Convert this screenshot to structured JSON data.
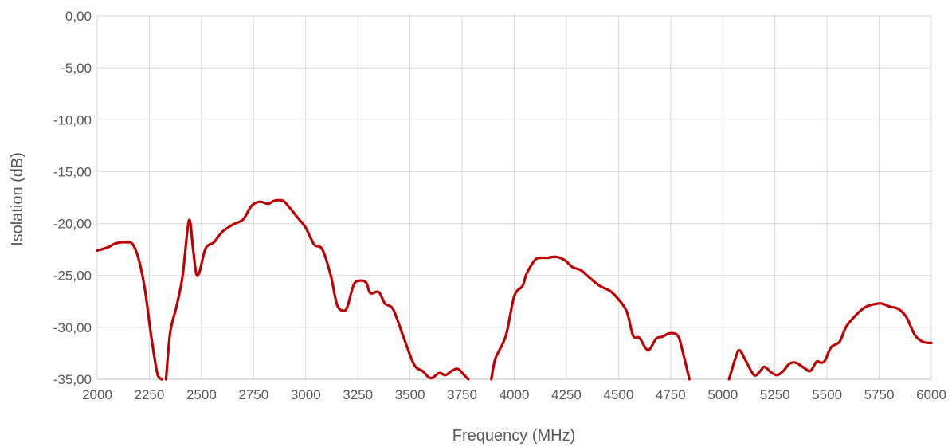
{
  "chart_data": {
    "type": "line",
    "xlabel": "Frequency (MHz)",
    "ylabel": "Isolation (dB)",
    "xlim": [
      2000,
      6000
    ],
    "ylim": [
      -35,
      0
    ],
    "x_ticks": [
      2000,
      2250,
      2500,
      2750,
      3000,
      3250,
      3500,
      3750,
      4000,
      4250,
      4500,
      4750,
      5000,
      5250,
      5500,
      5750,
      6000
    ],
    "x_tick_labels": [
      "2000",
      "2250",
      "2500",
      "2750",
      "3000",
      "3250",
      "3500",
      "3750",
      "4000",
      "4250",
      "4500",
      "4750",
      "5000",
      "5250",
      "5500",
      "5750",
      "6000"
    ],
    "y_ticks": [
      0,
      -5,
      -10,
      -15,
      -20,
      -25,
      -30,
      -35
    ],
    "y_tick_labels": [
      "0,00",
      "-5,00",
      "-10,00",
      "-15,00",
      "-20,00",
      "-25,00",
      "-30,00",
      "-35,00"
    ],
    "grid": true,
    "legend": "none",
    "series": [
      {
        "color": "#c00000",
        "segments": [
          [
            [
              2000,
              -22.6
            ],
            [
              2050,
              -22.3
            ],
            [
              2090,
              -21.9
            ],
            [
              2140,
              -21.8
            ],
            [
              2170,
              -22.0
            ],
            [
              2200,
              -23.5
            ],
            [
              2230,
              -26.5
            ],
            [
              2260,
              -31.0
            ],
            [
              2290,
              -34.6
            ],
            [
              2310,
              -35.0
            ]
          ],
          [
            [
              2330,
              -35.0
            ],
            [
              2350,
              -30.5
            ],
            [
              2380,
              -28.0
            ],
            [
              2410,
              -25.0
            ],
            [
              2440,
              -19.7
            ],
            [
              2460,
              -22.5
            ],
            [
              2475,
              -24.8
            ],
            [
              2490,
              -24.7
            ],
            [
              2520,
              -22.4
            ],
            [
              2560,
              -21.8
            ],
            [
              2600,
              -20.8
            ],
            [
              2650,
              -20.1
            ],
            [
              2700,
              -19.6
            ],
            [
              2740,
              -18.3
            ],
            [
              2780,
              -17.9
            ],
            [
              2820,
              -18.1
            ],
            [
              2850,
              -17.8
            ],
            [
              2890,
              -17.8
            ],
            [
              2920,
              -18.4
            ],
            [
              2960,
              -19.4
            ],
            [
              3000,
              -20.4
            ],
            [
              3040,
              -22.0
            ],
            [
              3080,
              -22.5
            ],
            [
              3120,
              -25.0
            ],
            [
              3150,
              -27.8
            ],
            [
              3180,
              -28.4
            ],
            [
              3200,
              -28.0
            ],
            [
              3230,
              -25.9
            ],
            [
              3260,
              -25.5
            ],
            [
              3290,
              -25.7
            ],
            [
              3310,
              -26.7
            ],
            [
              3350,
              -26.6
            ],
            [
              3380,
              -27.7
            ],
            [
              3420,
              -28.3
            ],
            [
              3470,
              -31.0
            ],
            [
              3520,
              -33.6
            ],
            [
              3560,
              -34.2
            ],
            [
              3600,
              -34.9
            ],
            [
              3640,
              -34.4
            ],
            [
              3670,
              -34.6
            ],
            [
              3700,
              -34.2
            ],
            [
              3730,
              -34.0
            ],
            [
              3760,
              -34.6
            ],
            [
              3780,
              -35.0
            ]
          ],
          [
            [
              3890,
              -35.0
            ],
            [
              3910,
              -33.0
            ],
            [
              3960,
              -30.8
            ],
            [
              4000,
              -27.0
            ],
            [
              4040,
              -26.0
            ],
            [
              4060,
              -24.8
            ],
            [
              4100,
              -23.5
            ],
            [
              4130,
              -23.3
            ],
            [
              4160,
              -23.3
            ],
            [
              4200,
              -23.2
            ],
            [
              4240,
              -23.5
            ],
            [
              4280,
              -24.2
            ],
            [
              4320,
              -24.5
            ],
            [
              4360,
              -25.2
            ],
            [
              4410,
              -26.0
            ],
            [
              4460,
              -26.5
            ],
            [
              4500,
              -27.3
            ],
            [
              4540,
              -28.5
            ],
            [
              4570,
              -30.8
            ],
            [
              4600,
              -31.0
            ],
            [
              4630,
              -32.0
            ],
            [
              4650,
              -32.1
            ],
            [
              4680,
              -31.1
            ],
            [
              4710,
              -30.9
            ],
            [
              4740,
              -30.6
            ],
            [
              4770,
              -30.6
            ],
            [
              4790,
              -31.0
            ],
            [
              4810,
              -32.5
            ],
            [
              4840,
              -35.0
            ]
          ],
          [
            [
              5030,
              -35.0
            ],
            [
              5060,
              -33.0
            ],
            [
              5080,
              -32.2
            ],
            [
              5110,
              -33.2
            ],
            [
              5150,
              -34.6
            ],
            [
              5180,
              -34.2
            ],
            [
              5200,
              -33.8
            ],
            [
              5230,
              -34.3
            ],
            [
              5260,
              -34.6
            ],
            [
              5290,
              -34.2
            ],
            [
              5320,
              -33.5
            ],
            [
              5350,
              -33.4
            ],
            [
              5390,
              -33.9
            ],
            [
              5420,
              -34.2
            ],
            [
              5450,
              -33.3
            ],
            [
              5470,
              -33.4
            ],
            [
              5490,
              -33.2
            ],
            [
              5520,
              -31.9
            ],
            [
              5560,
              -31.4
            ],
            [
              5590,
              -30.0
            ],
            [
              5630,
              -29.0
            ],
            [
              5680,
              -28.1
            ],
            [
              5720,
              -27.8
            ],
            [
              5760,
              -27.7
            ],
            [
              5800,
              -28.0
            ],
            [
              5840,
              -28.2
            ],
            [
              5880,
              -29.0
            ],
            [
              5920,
              -30.7
            ],
            [
              5960,
              -31.4
            ],
            [
              6000,
              -31.5
            ]
          ]
        ]
      }
    ]
  }
}
